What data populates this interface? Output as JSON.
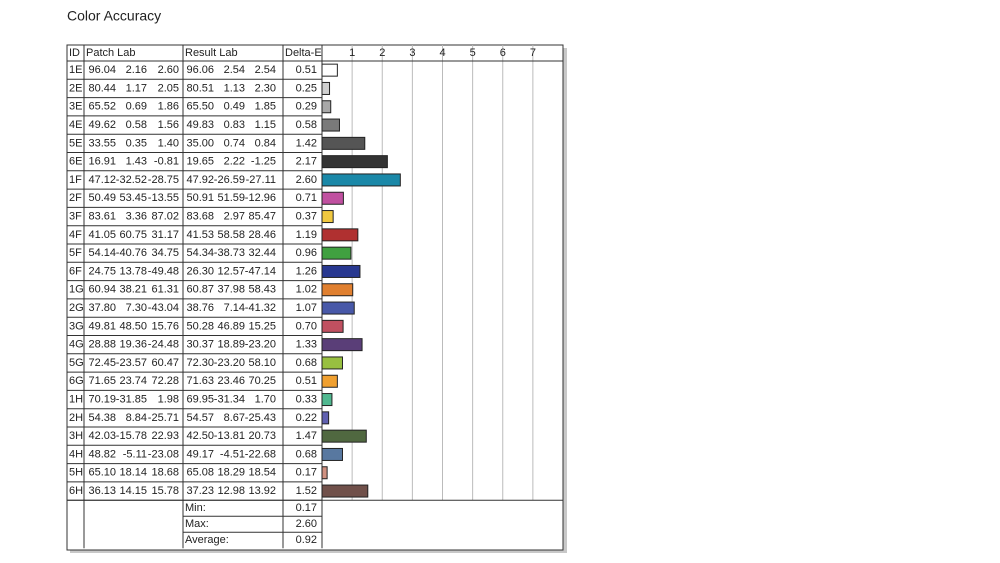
{
  "title": "Color Accuracy",
  "table": {
    "headers": [
      "ID",
      "Patch Lab",
      "Result Lab",
      "Delta-E"
    ],
    "rows": [
      [
        [
          "96.04",
          "2.16",
          "2.60"
        ],
        [
          "96.06",
          "2.54",
          "2.54"
        ]
      ],
      [
        [
          "80.44",
          "1.17",
          "2.05"
        ],
        [
          "80.51",
          "1.13",
          "2.30"
        ]
      ],
      [
        [
          "65.52",
          "0.69",
          "1.86"
        ],
        [
          "65.50",
          "0.49",
          "1.85"
        ]
      ],
      [
        [
          "49.62",
          "0.58",
          "1.56"
        ],
        [
          "49.83",
          "0.83",
          "1.15"
        ]
      ],
      [
        [
          "33.55",
          "0.35",
          "1.40"
        ],
        [
          "35.00",
          "0.74",
          "0.84"
        ]
      ],
      [
        [
          "16.91",
          "1.43",
          "-0.81"
        ],
        [
          "19.65",
          "2.22",
          "-1.25"
        ]
      ],
      [
        [
          "47.12",
          "-32.52",
          "-28.75"
        ],
        [
          "47.92",
          "-26.59",
          "-27.11"
        ]
      ],
      [
        [
          "50.49",
          "53.45",
          "-13.55"
        ],
        [
          "50.91",
          "51.59",
          "-12.96"
        ]
      ],
      [
        [
          "83.61",
          "3.36",
          "87.02"
        ],
        [
          "83.68",
          "2.97",
          "85.47"
        ]
      ],
      [
        [
          "41.05",
          "60.75",
          "31.17"
        ],
        [
          "41.53",
          "58.58",
          "28.46"
        ]
      ],
      [
        [
          "54.14",
          "-40.76",
          "34.75"
        ],
        [
          "54.34",
          "-38.73",
          "32.44"
        ]
      ],
      [
        [
          "24.75",
          "13.78",
          "-49.48"
        ],
        [
          "26.30",
          "12.57",
          "-47.14"
        ]
      ],
      [
        [
          "60.94",
          "38.21",
          "61.31"
        ],
        [
          "60.87",
          "37.98",
          "58.43"
        ]
      ],
      [
        [
          "37.80",
          "7.30",
          "-43.04"
        ],
        [
          "38.76",
          "7.14",
          "-41.32"
        ]
      ],
      [
        [
          "49.81",
          "48.50",
          "15.76"
        ],
        [
          "50.28",
          "46.89",
          "15.25"
        ]
      ],
      [
        [
          "28.88",
          "19.36",
          "-24.48"
        ],
        [
          "30.37",
          "18.89",
          "-23.20"
        ]
      ],
      [
        [
          "72.45",
          "-23.57",
          "60.47"
        ],
        [
          "72.30",
          "-23.20",
          "58.10"
        ]
      ],
      [
        [
          "71.65",
          "23.74",
          "72.28"
        ],
        [
          "71.63",
          "23.46",
          "70.25"
        ]
      ],
      [
        [
          "70.19",
          "-31.85",
          "1.98"
        ],
        [
          "69.95",
          "-31.34",
          "1.70"
        ]
      ],
      [
        [
          "54.38",
          "8.84",
          "-25.71"
        ],
        [
          "54.57",
          "8.67",
          "-25.43"
        ]
      ],
      [
        [
          "42.03",
          "-15.78",
          "22.93"
        ],
        [
          "42.50",
          "-13.81",
          "20.73"
        ]
      ],
      [
        [
          "48.82",
          "-5.11",
          "-23.08"
        ],
        [
          "49.17",
          "-4.51",
          "-22.68"
        ]
      ],
      [
        [
          "65.10",
          "18.14",
          "18.68"
        ],
        [
          "65.08",
          "18.29",
          "18.54"
        ]
      ],
      [
        [
          "36.13",
          "14.15",
          "15.78"
        ],
        [
          "37.23",
          "12.98",
          "13.92"
        ]
      ]
    ],
    "summary": [
      {
        "label": "Min:",
        "value": "0.17"
      },
      {
        "label": "Max:",
        "value": "2.60"
      },
      {
        "label": "Average:",
        "value": "0.92"
      }
    ]
  },
  "chart_data": {
    "type": "bar",
    "orientation": "horizontal",
    "categories": [
      "1E",
      "2E",
      "3E",
      "4E",
      "5E",
      "6E",
      "1F",
      "2F",
      "3F",
      "4F",
      "5F",
      "6F",
      "1G",
      "2G",
      "3G",
      "4G",
      "5G",
      "6G",
      "1H",
      "2H",
      "3H",
      "4H",
      "5H",
      "6H"
    ],
    "values": [
      0.51,
      0.25,
      0.29,
      0.58,
      1.42,
      2.17,
      2.6,
      0.71,
      0.37,
      1.19,
      0.96,
      1.26,
      1.02,
      1.07,
      0.7,
      1.33,
      0.68,
      0.51,
      0.33,
      0.22,
      1.47,
      0.68,
      0.17,
      1.52
    ],
    "value_labels": [
      "0.51",
      "0.25",
      "0.29",
      "0.58",
      "1.42",
      "2.17",
      "2.60",
      "0.71",
      "0.37",
      "1.19",
      "0.96",
      "1.26",
      "1.02",
      "1.07",
      "0.70",
      "1.33",
      "0.68",
      "0.51",
      "0.33",
      "0.22",
      "1.47",
      "0.68",
      "0.17",
      "1.52"
    ],
    "colors": [
      "#ffffff",
      "#d0d0d0",
      "#a8a8a8",
      "#7a7a7a",
      "#555555",
      "#333333",
      "#1a88a8",
      "#c050a0",
      "#f0c840",
      "#b03030",
      "#40a040",
      "#283890",
      "#e08030",
      "#4858a8",
      "#c05060",
      "#5a3e78",
      "#98c040",
      "#f0a030",
      "#50b890",
      "#6060b0",
      "#506840",
      "#5878a0",
      "#d09080",
      "#70504a"
    ],
    "xlim": [
      0,
      8
    ],
    "xticks": [
      1,
      2,
      3,
      4,
      5,
      6,
      7
    ],
    "grid": true
  }
}
